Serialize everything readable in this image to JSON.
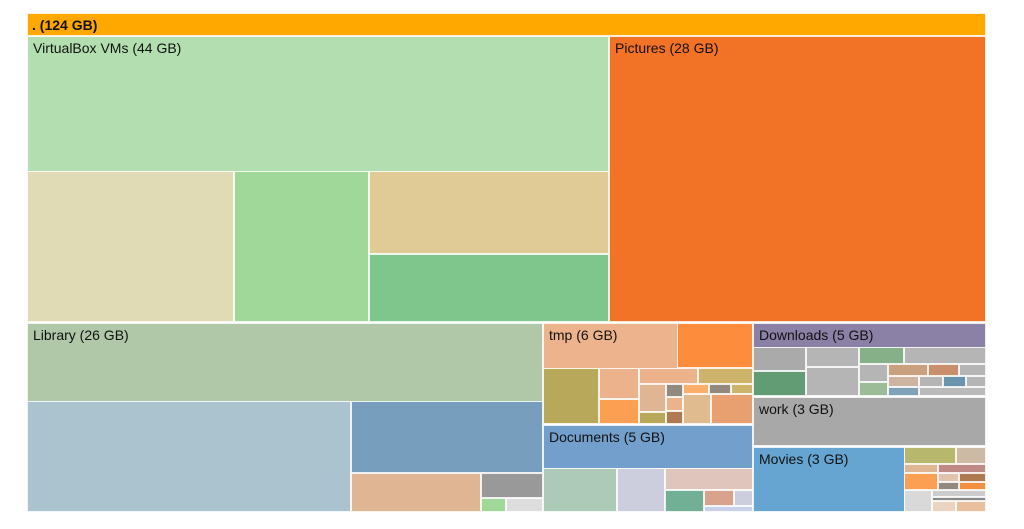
{
  "chart_data": {
    "type": "treemap",
    "unit": "GB",
    "root": {
      "label": ". (124 GB)",
      "name": ".",
      "size": 124,
      "color": "#ffa800"
    },
    "nodes": [
      {
        "key": "virtualbox",
        "label": "VirtualBox VMs (44 GB)",
        "name": "VirtualBox VMs",
        "size": 44,
        "color": "#b3dfb0"
      },
      {
        "key": "pictures",
        "label": "Pictures (28 GB)",
        "name": "Pictures",
        "size": 28,
        "color": "#f27226"
      },
      {
        "key": "library",
        "label": "Library (26 GB)",
        "name": "Library",
        "size": 26,
        "color": "#b0c8a8"
      },
      {
        "key": "tmp",
        "label": "tmp (6 GB)",
        "name": "tmp",
        "size": 6,
        "color": "#edb38c"
      },
      {
        "key": "documents",
        "label": "Documents (5 GB)",
        "name": "Documents",
        "size": 5,
        "color": "#729fcb"
      },
      {
        "key": "downloads",
        "label": "Downloads (5 GB)",
        "name": "Downloads",
        "size": 5,
        "color": "#8b80a6"
      },
      {
        "key": "work",
        "label": "work (3 GB)",
        "name": "work",
        "size": 3,
        "color": "#a8a8a8"
      },
      {
        "key": "movies",
        "label": "Movies (3 GB)",
        "name": "Movies",
        "size": 3,
        "color": "#66a5d1"
      }
    ]
  }
}
